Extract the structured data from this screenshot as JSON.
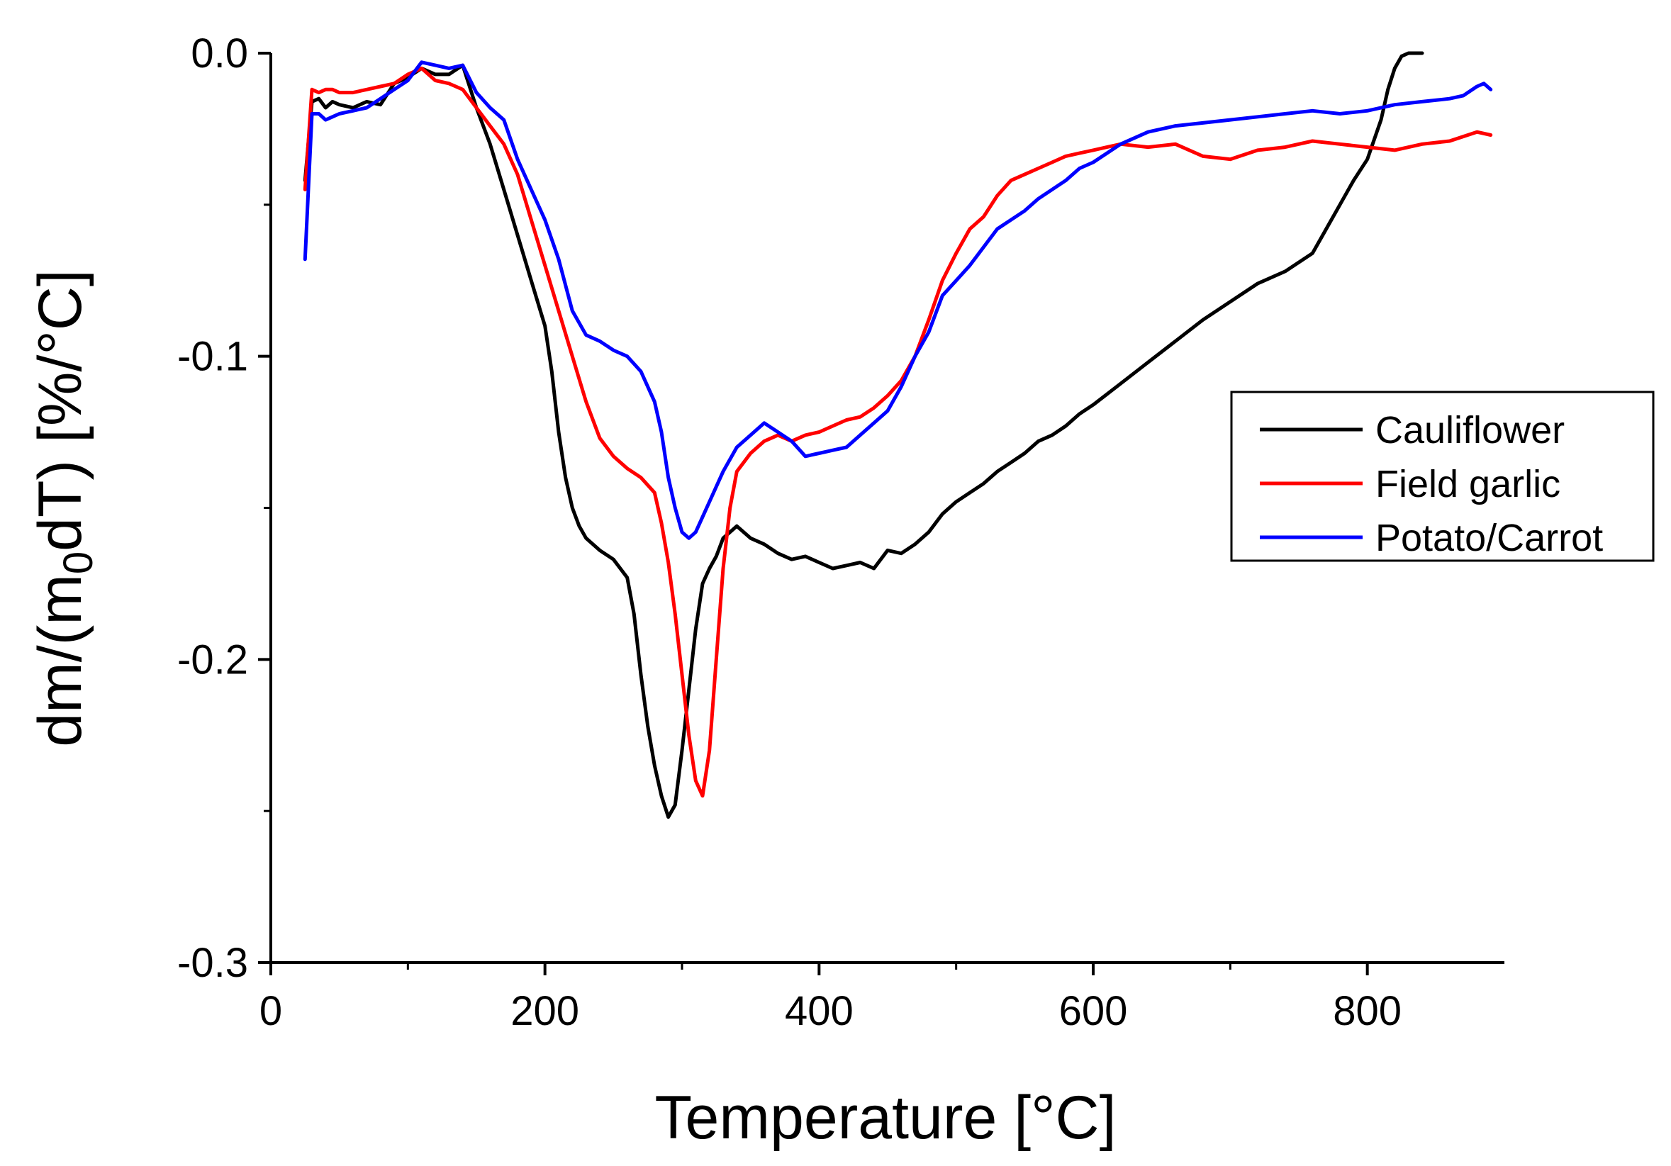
{
  "chart_data": {
    "type": "line",
    "title": "",
    "xlabel": "Temperature [°C]",
    "ylabel": "dm/(m0dT) [%/°C]",
    "ylabel_parts": {
      "pre": "dm/(m",
      "sub": "0",
      "post": "dT) [%/°C]"
    },
    "xlim": [
      0,
      900
    ],
    "ylim": [
      -0.3,
      0.0
    ],
    "xticks": [
      0,
      200,
      400,
      600,
      800
    ],
    "xtick_labels": [
      "0",
      "200",
      "400",
      "600",
      "800"
    ],
    "yticks": [
      0.0,
      -0.1,
      -0.2,
      -0.3
    ],
    "ytick_labels": [
      "0.0",
      "-0.1",
      "-0.2",
      "-0.3"
    ],
    "grid": false,
    "legend_position": "right",
    "series": [
      {
        "name": "Cauliflower",
        "color": "#000000",
        "x": [
          25,
          30,
          35,
          40,
          45,
          50,
          60,
          70,
          80,
          90,
          100,
          110,
          120,
          130,
          140,
          150,
          160,
          170,
          180,
          190,
          200,
          205,
          210,
          215,
          220,
          225,
          230,
          240,
          250,
          260,
          265,
          270,
          275,
          280,
          285,
          290,
          295,
          300,
          305,
          310,
          315,
          320,
          325,
          330,
          340,
          350,
          360,
          370,
          380,
          390,
          400,
          410,
          420,
          430,
          440,
          450,
          460,
          470,
          480,
          490,
          500,
          510,
          520,
          530,
          540,
          550,
          560,
          570,
          580,
          590,
          600,
          620,
          640,
          660,
          680,
          700,
          720,
          740,
          760,
          770,
          780,
          790,
          800,
          810,
          815,
          820,
          825,
          830,
          840
        ],
        "y": [
          -0.042,
          -0.016,
          -0.015,
          -0.018,
          -0.016,
          -0.017,
          -0.018,
          -0.016,
          -0.017,
          -0.01,
          -0.008,
          -0.005,
          -0.007,
          -0.007,
          -0.004,
          -0.018,
          -0.03,
          -0.045,
          -0.06,
          -0.075,
          -0.09,
          -0.105,
          -0.125,
          -0.14,
          -0.15,
          -0.156,
          -0.16,
          -0.164,
          -0.167,
          -0.173,
          -0.185,
          -0.205,
          -0.222,
          -0.235,
          -0.245,
          -0.252,
          -0.248,
          -0.23,
          -0.21,
          -0.19,
          -0.175,
          -0.17,
          -0.166,
          -0.16,
          -0.156,
          -0.16,
          -0.162,
          -0.165,
          -0.167,
          -0.166,
          -0.168,
          -0.17,
          -0.169,
          -0.168,
          -0.17,
          -0.164,
          -0.165,
          -0.162,
          -0.158,
          -0.152,
          -0.148,
          -0.145,
          -0.142,
          -0.138,
          -0.135,
          -0.132,
          -0.128,
          -0.126,
          -0.123,
          -0.119,
          -0.116,
          -0.109,
          -0.102,
          -0.095,
          -0.088,
          -0.082,
          -0.076,
          -0.072,
          -0.066,
          -0.058,
          -0.05,
          -0.042,
          -0.035,
          -0.022,
          -0.012,
          -0.005,
          -0.001,
          0.0,
          0.0
        ]
      },
      {
        "name": "Field garlic",
        "color": "#ff0000",
        "x": [
          25,
          30,
          35,
          40,
          45,
          50,
          60,
          70,
          80,
          90,
          100,
          110,
          120,
          130,
          140,
          150,
          160,
          170,
          180,
          190,
          200,
          210,
          220,
          230,
          240,
          250,
          260,
          270,
          280,
          285,
          290,
          295,
          300,
          305,
          310,
          315,
          320,
          325,
          330,
          335,
          340,
          350,
          360,
          370,
          380,
          390,
          400,
          410,
          420,
          430,
          440,
          450,
          460,
          470,
          480,
          490,
          500,
          510,
          520,
          530,
          540,
          550,
          560,
          570,
          580,
          590,
          600,
          610,
          620,
          640,
          660,
          680,
          700,
          720,
          740,
          760,
          780,
          800,
          820,
          840,
          860,
          880,
          890
        ],
        "y": [
          -0.045,
          -0.012,
          -0.013,
          -0.012,
          -0.012,
          -0.013,
          -0.013,
          -0.012,
          -0.011,
          -0.01,
          -0.007,
          -0.005,
          -0.009,
          -0.01,
          -0.012,
          -0.018,
          -0.024,
          -0.03,
          -0.04,
          -0.055,
          -0.07,
          -0.085,
          -0.1,
          -0.115,
          -0.127,
          -0.133,
          -0.137,
          -0.14,
          -0.145,
          -0.155,
          -0.168,
          -0.185,
          -0.205,
          -0.225,
          -0.24,
          -0.245,
          -0.23,
          -0.2,
          -0.17,
          -0.15,
          -0.138,
          -0.132,
          -0.128,
          -0.126,
          -0.128,
          -0.126,
          -0.125,
          -0.123,
          -0.121,
          -0.12,
          -0.117,
          -0.113,
          -0.108,
          -0.1,
          -0.088,
          -0.075,
          -0.066,
          -0.058,
          -0.054,
          -0.047,
          -0.042,
          -0.04,
          -0.038,
          -0.036,
          -0.034,
          -0.033,
          -0.032,
          -0.031,
          -0.03,
          -0.031,
          -0.03,
          -0.034,
          -0.035,
          -0.032,
          -0.031,
          -0.029,
          -0.03,
          -0.031,
          -0.032,
          -0.03,
          -0.029,
          -0.026,
          -0.027
        ]
      },
      {
        "name": "Potato/Carrot",
        "color": "#0000ff",
        "x": [
          25,
          30,
          35,
          40,
          45,
          50,
          60,
          70,
          80,
          90,
          100,
          110,
          120,
          130,
          140,
          150,
          160,
          170,
          180,
          190,
          200,
          210,
          220,
          230,
          240,
          250,
          260,
          270,
          280,
          285,
          290,
          295,
          300,
          305,
          310,
          315,
          320,
          330,
          340,
          350,
          360,
          370,
          380,
          390,
          400,
          410,
          420,
          430,
          440,
          450,
          460,
          470,
          480,
          490,
          500,
          510,
          520,
          530,
          540,
          550,
          560,
          570,
          580,
          590,
          600,
          620,
          640,
          660,
          680,
          700,
          720,
          740,
          760,
          780,
          800,
          820,
          840,
          860,
          870,
          880,
          885,
          890
        ],
        "y": [
          -0.068,
          -0.02,
          -0.02,
          -0.022,
          -0.021,
          -0.02,
          -0.019,
          -0.018,
          -0.015,
          -0.012,
          -0.009,
          -0.003,
          -0.004,
          -0.005,
          -0.004,
          -0.013,
          -0.018,
          -0.022,
          -0.035,
          -0.045,
          -0.055,
          -0.068,
          -0.085,
          -0.093,
          -0.095,
          -0.098,
          -0.1,
          -0.105,
          -0.115,
          -0.125,
          -0.14,
          -0.15,
          -0.158,
          -0.16,
          -0.158,
          -0.153,
          -0.148,
          -0.138,
          -0.13,
          -0.126,
          -0.122,
          -0.125,
          -0.128,
          -0.133,
          -0.132,
          -0.131,
          -0.13,
          -0.126,
          -0.122,
          -0.118,
          -0.11,
          -0.1,
          -0.092,
          -0.08,
          -0.075,
          -0.07,
          -0.064,
          -0.058,
          -0.055,
          -0.052,
          -0.048,
          -0.045,
          -0.042,
          -0.038,
          -0.036,
          -0.03,
          -0.026,
          -0.024,
          -0.023,
          -0.022,
          -0.021,
          -0.02,
          -0.019,
          -0.02,
          -0.019,
          -0.017,
          -0.016,
          -0.015,
          -0.014,
          -0.011,
          -0.01,
          -0.012
        ]
      }
    ]
  }
}
